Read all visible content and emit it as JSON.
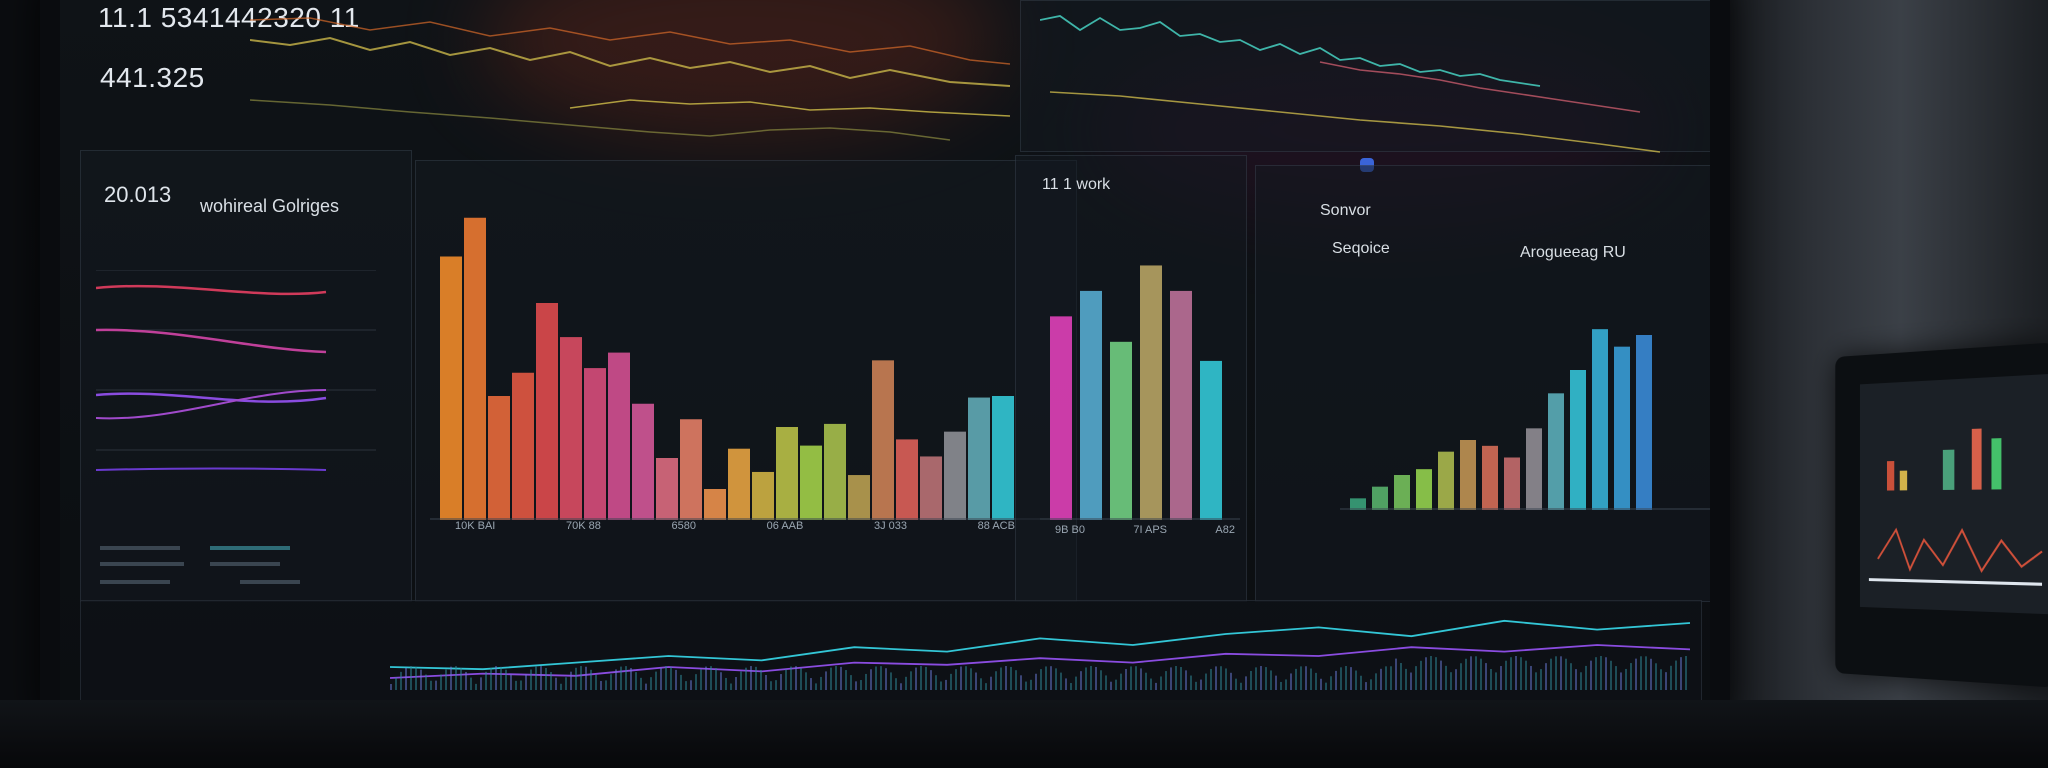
{
  "topLeft": {
    "value1": "11.1 5341442320 11",
    "value2": "441.325",
    "legend_text": "",
    "legend_items": [
      "",
      "",
      ""
    ]
  },
  "leftPanel": {
    "number": "20.013",
    "title": "wohireal Golriges",
    "subtitle": "",
    "header_small": ""
  },
  "centerBarChart": {
    "x_labels": [
      "10K BAI",
      "70K 88",
      "6580",
      "06 AAB",
      "3J 033",
      "88 ACB"
    ],
    "footer": ""
  },
  "midTopPanel": {
    "top_right_label": "",
    "side_label": ""
  },
  "networkPanel": {
    "title": "11 1 work",
    "subtitle": "",
    "x_labels": [
      "9B B0",
      "7I APS",
      "A82"
    ]
  },
  "sensorPanel": {
    "title": "Sonvor",
    "subtitle": "Seqoice",
    "right_title": "Arogueeag RU",
    "footer_items": [
      "",
      "",
      "",
      ""
    ]
  },
  "bottomStrip": {
    "labels": [
      "",
      "",
      ""
    ]
  },
  "colors": {
    "accent_cyan": "#33c6d6",
    "accent_magenta": "#e040b8",
    "accent_orange": "#f08a2a",
    "accent_green": "#9bd44a",
    "accent_purple": "#8a4ce0"
  },
  "chart_data": [
    {
      "type": "bar",
      "title": "",
      "categories": [
        "10K BAI",
        "",
        "",
        "",
        "70K 88",
        "",
        "",
        "",
        "6580",
        "",
        "",
        "",
        "06 AAB",
        "",
        "",
        "",
        "3J 033",
        "",
        "",
        "",
        "88 ACB",
        "",
        "",
        ""
      ],
      "values": [
        170,
        195,
        80,
        95,
        140,
        118,
        98,
        108,
        75,
        40,
        65,
        20,
        46,
        31,
        60,
        48,
        62,
        29,
        103,
        52,
        41,
        57,
        79,
        80
      ],
      "xlabel": "",
      "ylabel": "",
      "ylim": [
        0,
        200
      ]
    },
    {
      "type": "bar",
      "title": "11 1 work",
      "categories": [
        "9B B0",
        "",
        "",
        "7I APS",
        "",
        "A82"
      ],
      "values": [
        160,
        180,
        140,
        200,
        180,
        125
      ],
      "ylim": [
        0,
        220
      ]
    },
    {
      "type": "bar",
      "title": "Arogueeag RU",
      "categories": [
        "",
        "",
        "",
        "",
        "",
        "",
        "",
        "",
        "",
        "",
        "",
        "",
        "",
        ""
      ],
      "values": [
        10,
        20,
        30,
        35,
        50,
        60,
        55,
        45,
        70,
        100,
        120,
        155,
        140,
        150
      ],
      "ylim": [
        0,
        180
      ]
    },
    {
      "type": "line",
      "title": "",
      "series": [
        {
          "values": [
            30,
            28,
            34,
            40,
            36,
            48,
            44,
            56,
            50,
            60,
            66,
            58,
            72,
            64,
            70
          ]
        },
        {
          "values": [
            20,
            24,
            22,
            30,
            26,
            34,
            32,
            38,
            34,
            42,
            40,
            48,
            44,
            50,
            46
          ]
        }
      ]
    }
  ]
}
